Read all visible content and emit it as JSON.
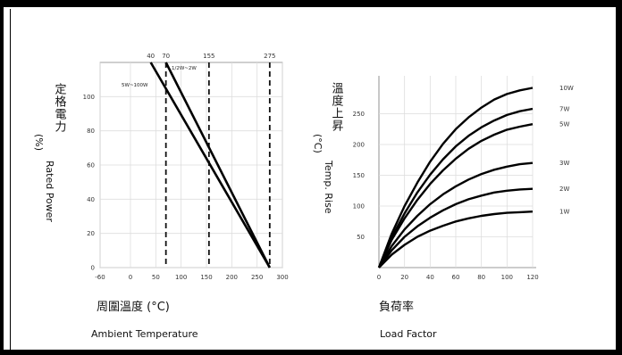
{
  "chart_data": [
    {
      "type": "line",
      "title": "",
      "ylabel_cjk": "定格電力",
      "ylabel_unit": "(%)",
      "ylabel": "Rated Power",
      "xlabel_cjk": "周圍溫度 (°C)",
      "xlabel": "Ambient Temperature",
      "xlim": [
        -60,
        300
      ],
      "ylim": [
        0,
        120
      ],
      "x_ticks": [
        "-60",
        "0",
        "50",
        "100",
        "150",
        "200",
        "250",
        "300"
      ],
      "x_tick_values": [
        -60,
        0,
        50,
        100,
        150,
        200,
        250,
        300
      ],
      "y_ticks": [
        "0",
        "20",
        "40",
        "60",
        "80",
        "100"
      ],
      "y_tick_values": [
        0,
        20,
        40,
        60,
        80,
        100
      ],
      "top_ticks": [
        "40",
        "70",
        "155",
        "275"
      ],
      "top_tick_values": [
        40,
        70,
        155,
        275
      ],
      "dashed_x": [
        70,
        155,
        275
      ],
      "series": [
        {
          "name": "",
          "values": [
            [
              40,
              120
            ],
            [
              275,
              0
            ]
          ]
        },
        {
          "name": "",
          "values": [
            [
              70,
              120
            ],
            [
              275,
              0
            ]
          ]
        }
      ],
      "annotations": [
        "5W~100W",
        "1/2W~2W"
      ],
      "grid": true
    },
    {
      "type": "line",
      "title": "",
      "ylabel_cjk": "溫度上昇",
      "ylabel_unit": "(°C)",
      "ylabel": "Temp. Rise",
      "xlabel_cjk": "負荷率",
      "xlabel": "Load Factor",
      "xlim": [
        0,
        120
      ],
      "ylim": [
        0,
        300
      ],
      "x_ticks": [
        "0",
        "20",
        "40",
        "60",
        "80",
        "100",
        "120"
      ],
      "x_tick_values": [
        0,
        20,
        40,
        60,
        80,
        100,
        120
      ],
      "y_ticks": [
        "50",
        "100",
        "150",
        "200",
        "250"
      ],
      "y_tick_values": [
        50,
        100,
        150,
        200,
        250
      ],
      "x": [
        0,
        10,
        20,
        30,
        40,
        50,
        60,
        70,
        80,
        90,
        100,
        110,
        120
      ],
      "series": [
        {
          "name": "10W",
          "values": [
            0,
            55,
            100,
            138,
            172,
            201,
            225,
            244,
            260,
            273,
            282,
            288,
            292
          ]
        },
        {
          "name": "7W",
          "values": [
            0,
            49,
            88,
            122,
            151,
            176,
            197,
            214,
            228,
            239,
            248,
            254,
            258
          ]
        },
        {
          "name": "5W",
          "values": [
            0,
            45,
            80,
            110,
            136,
            158,
            177,
            193,
            206,
            216,
            224,
            229,
            233
          ]
        },
        {
          "name": "3W",
          "values": [
            0,
            35,
            62,
            84,
            103,
            119,
            132,
            143,
            152,
            159,
            164,
            168,
            170
          ]
        },
        {
          "name": "2W",
          "values": [
            0,
            28,
            50,
            67,
            81,
            93,
            103,
            111,
            117,
            122,
            125,
            127,
            128
          ]
        },
        {
          "name": "1W",
          "values": [
            0,
            21,
            37,
            50,
            60,
            68,
            75,
            80,
            84,
            87,
            89,
            90,
            91
          ]
        }
      ],
      "grid": true
    }
  ]
}
